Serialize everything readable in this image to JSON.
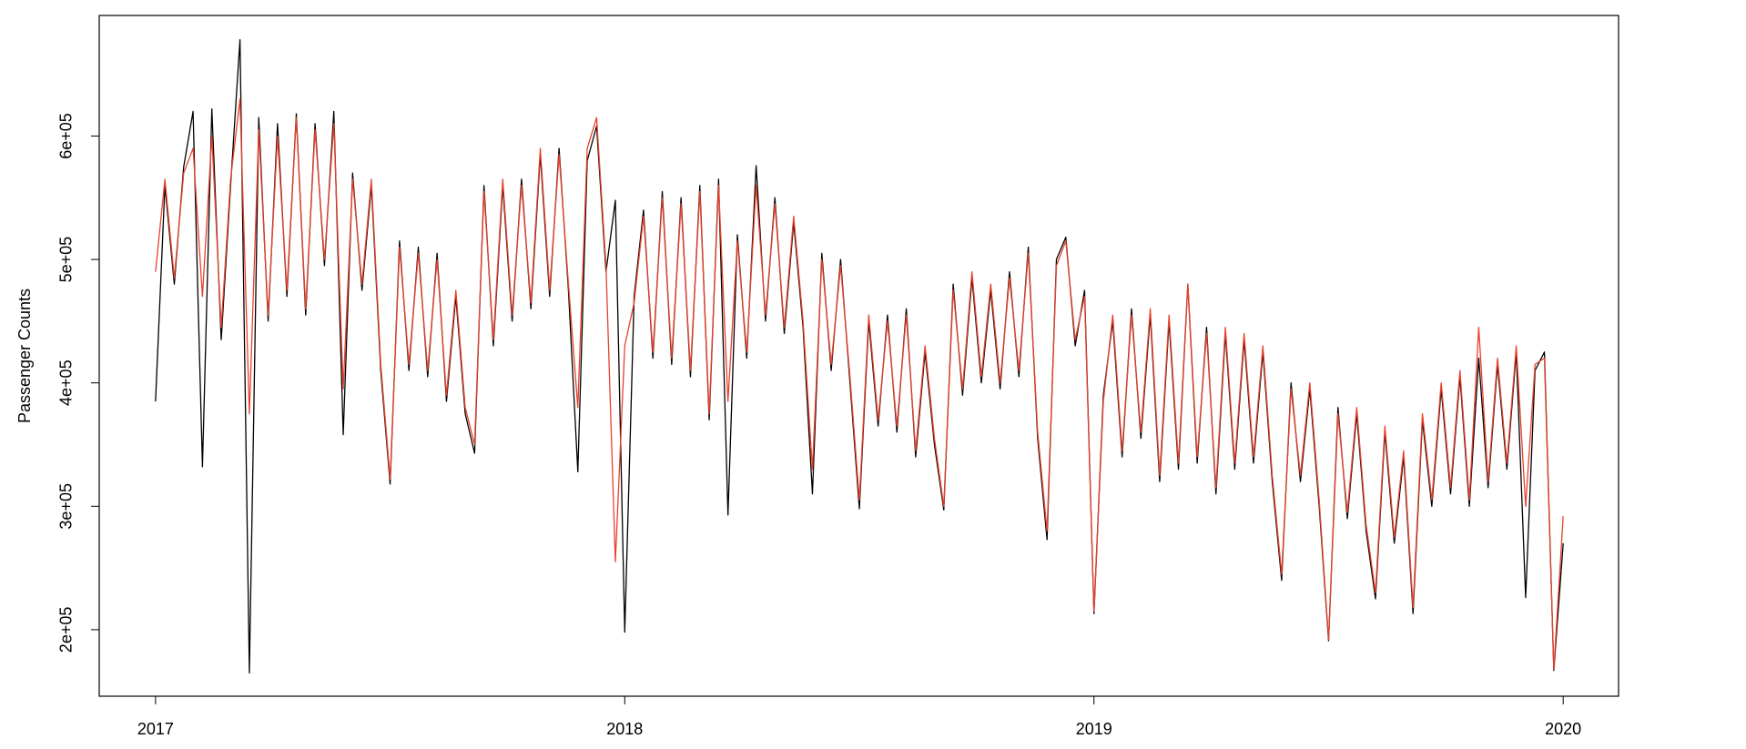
{
  "chart_data": {
    "type": "line",
    "ylabel": "Passenger Counts",
    "xlim": [
      2016.88,
      2020.118
    ],
    "ylim": [
      146100,
      697700
    ],
    "xticks": [
      2017,
      2018,
      2019,
      2020
    ],
    "yticks": [
      {
        "value": 200000,
        "label": "2e+05"
      },
      {
        "value": 300000,
        "label": "3e+05"
      },
      {
        "value": 400000,
        "label": "4e+05"
      },
      {
        "value": 500000,
        "label": "5e+05"
      },
      {
        "value": 600000,
        "label": "6e+05"
      }
    ],
    "x": [
      2017,
      2017.02,
      2017.04,
      2017.06,
      2017.08,
      2017.1,
      2017.12,
      2017.14,
      2017.16,
      2017.18,
      2017.2,
      2017.22,
      2017.24,
      2017.26,
      2017.28,
      2017.3,
      2017.32,
      2017.34,
      2017.36,
      2017.38,
      2017.4,
      2017.42,
      2017.44,
      2017.46,
      2017.48,
      2017.5,
      2017.52,
      2017.54,
      2017.56,
      2017.58,
      2017.6,
      2017.62,
      2017.64,
      2017.66,
      2017.68,
      2017.7,
      2017.72,
      2017.74,
      2017.76,
      2017.78,
      2017.8,
      2017.82,
      2017.84,
      2017.86,
      2017.88,
      2017.9,
      2017.92,
      2017.94,
      2017.96,
      2017.98,
      2018,
      2018.02,
      2018.04,
      2018.06,
      2018.08,
      2018.1,
      2018.12,
      2018.14,
      2018.16,
      2018.18,
      2018.2,
      2018.22,
      2018.24,
      2018.26,
      2018.28,
      2018.3,
      2018.32,
      2018.34,
      2018.36,
      2018.38,
      2018.4,
      2018.42,
      2018.44,
      2018.46,
      2018.48,
      2018.5,
      2018.52,
      2018.54,
      2018.56,
      2018.58,
      2018.6,
      2018.62,
      2018.64,
      2018.66,
      2018.68,
      2018.7,
      2018.72,
      2018.74,
      2018.76,
      2018.78,
      2018.8,
      2018.82,
      2018.84,
      2018.86,
      2018.88,
      2018.9,
      2018.92,
      2018.94,
      2018.96,
      2018.98,
      2019,
      2019.02,
      2019.04,
      2019.06,
      2019.08,
      2019.1,
      2019.12,
      2019.14,
      2019.16,
      2019.18,
      2019.2,
      2019.22,
      2019.24,
      2019.26,
      2019.28,
      2019.3,
      2019.32,
      2019.34,
      2019.36,
      2019.38,
      2019.4,
      2019.42,
      2019.44,
      2019.46,
      2019.48,
      2019.5,
      2019.52,
      2019.54,
      2019.56,
      2019.58,
      2019.6,
      2019.62,
      2019.64,
      2019.66,
      2019.68,
      2019.7,
      2019.72,
      2019.74,
      2019.76,
      2019.78,
      2019.8,
      2019.82,
      2019.84,
      2019.86,
      2019.88,
      2019.9,
      2019.92,
      2019.94,
      2019.96,
      2019.98,
      2020
    ],
    "series": [
      {
        "color": "#000000",
        "values": [
          385000,
          560000,
          480000,
          575000,
          620000,
          332000,
          622000,
          435000,
          560000,
          678000,
          165000,
          615000,
          450000,
          610000,
          470000,
          618000,
          455000,
          610000,
          495000,
          620000,
          358000,
          570000,
          475000,
          560000,
          410000,
          318000,
          515000,
          410000,
          510000,
          405000,
          505000,
          385000,
          470000,
          375000,
          343000,
          560000,
          430000,
          560000,
          450000,
          565000,
          460000,
          585000,
          470000,
          590000,
          475000,
          328000,
          580000,
          608000,
          490000,
          548000,
          198000,
          470000,
          540000,
          420000,
          555000,
          415000,
          550000,
          405000,
          560000,
          370000,
          565000,
          293000,
          520000,
          420000,
          576000,
          450000,
          550000,
          440000,
          530000,
          445000,
          310000,
          505000,
          410000,
          500000,
          400000,
          298000,
          450000,
          365000,
          455000,
          360000,
          460000,
          340000,
          425000,
          350000,
          297000,
          480000,
          390000,
          485000,
          400000,
          475000,
          395000,
          490000,
          405000,
          510000,
          355000,
          273000,
          500000,
          518000,
          430000,
          475000,
          213000,
          390000,
          450000,
          340000,
          460000,
          355000,
          455000,
          320000,
          450000,
          330000,
          480000,
          335000,
          445000,
          310000,
          440000,
          330000,
          435000,
          335000,
          425000,
          320000,
          240000,
          400000,
          320000,
          395000,
          300000,
          191000,
          380000,
          290000,
          375000,
          280000,
          225000,
          360000,
          270000,
          340000,
          213000,
          370000,
          300000,
          395000,
          310000,
          405000,
          300000,
          420000,
          315000,
          415000,
          330000,
          425000,
          226000,
          410000,
          425000,
          167000,
          270000
        ]
      },
      {
        "color": "#e8412c",
        "values": [
          490000,
          565000,
          485000,
          570000,
          590000,
          470000,
          600000,
          445000,
          565000,
          630000,
          375000,
          605000,
          455000,
          600000,
          475000,
          615000,
          460000,
          605000,
          500000,
          610000,
          395000,
          565000,
          480000,
          565000,
          415000,
          322000,
          510000,
          415000,
          505000,
          410000,
          500000,
          390000,
          475000,
          380000,
          350000,
          555000,
          435000,
          565000,
          455000,
          560000,
          465000,
          590000,
          475000,
          585000,
          480000,
          380000,
          590000,
          615000,
          495000,
          255000,
          430000,
          465000,
          535000,
          425000,
          550000,
          420000,
          545000,
          410000,
          555000,
          375000,
          560000,
          385000,
          515000,
          425000,
          560000,
          455000,
          545000,
          445000,
          535000,
          450000,
          330000,
          500000,
          415000,
          495000,
          405000,
          305000,
          455000,
          370000,
          450000,
          365000,
          455000,
          345000,
          430000,
          355000,
          300000,
          475000,
          395000,
          490000,
          405000,
          480000,
          400000,
          485000,
          410000,
          505000,
          360000,
          280000,
          495000,
          515000,
          435000,
          470000,
          215000,
          385000,
          455000,
          345000,
          455000,
          360000,
          460000,
          325000,
          455000,
          335000,
          480000,
          340000,
          440000,
          315000,
          445000,
          335000,
          440000,
          340000,
          430000,
          325000,
          245000,
          395000,
          325000,
          400000,
          305000,
          192000,
          375000,
          295000,
          380000,
          285000,
          230000,
          365000,
          275000,
          345000,
          218000,
          375000,
          305000,
          400000,
          315000,
          410000,
          305000,
          445000,
          320000,
          420000,
          335000,
          430000,
          300000,
          415000,
          420000,
          168000,
          292000
        ]
      }
    ]
  }
}
